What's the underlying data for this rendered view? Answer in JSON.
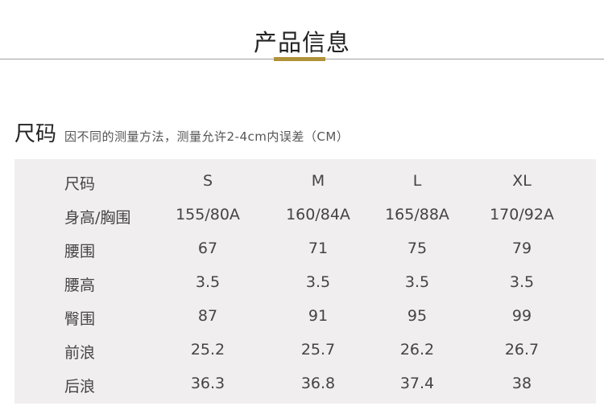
{
  "header": {
    "title": "产品信息",
    "accent_color": "#b0923a"
  },
  "size_section": {
    "title": "尺码",
    "note": "因不同的测量方法，测量允许2-4cm内误差（CM）"
  },
  "table": {
    "rows": [
      [
        "尺码",
        "S",
        "M",
        "L",
        "XL"
      ],
      [
        "身高/胸围",
        "155/80A",
        "160/84A",
        "165/88A",
        "170/92A"
      ],
      [
        "腰围",
        "67",
        "71",
        "75",
        "79"
      ],
      [
        "腰高",
        "3.5",
        "3.5",
        "3.5",
        "3.5"
      ],
      [
        "臀围",
        "87",
        "91",
        "95",
        "99"
      ],
      [
        "前浪",
        "25.2",
        "25.7",
        "26.2",
        "26.7"
      ],
      [
        "后浪",
        "36.3",
        "36.8",
        "37.4",
        "38"
      ]
    ]
  }
}
